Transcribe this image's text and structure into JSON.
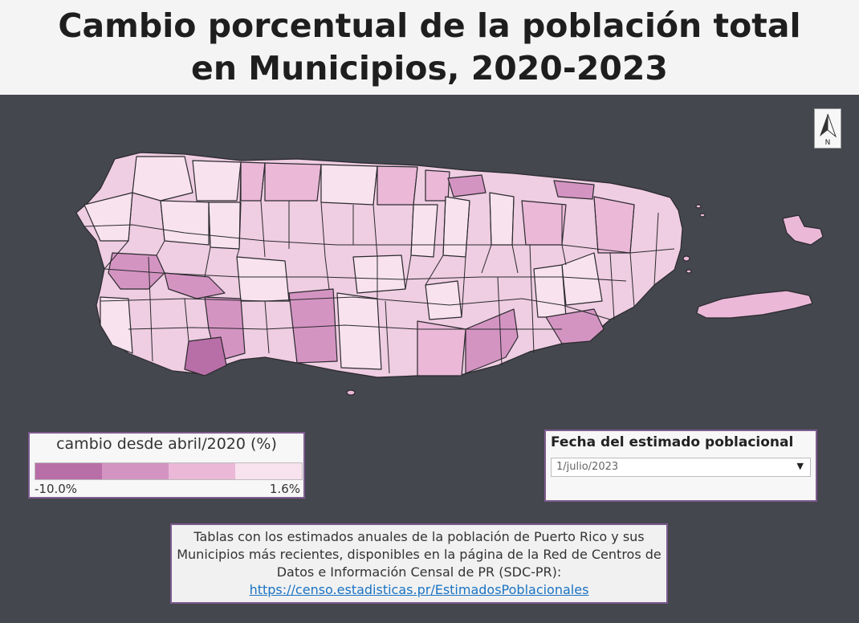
{
  "header": {
    "title_line1": "Cambio porcentual de la población total",
    "title_line2": "en Municipios, 2020-2023"
  },
  "north_arrow": {
    "label": "N"
  },
  "legend": {
    "title": "cambio desde abril/2020 (%)",
    "min_label": "-10.0%",
    "max_label": "1.6%",
    "colors": [
      "#b86ea6",
      "#d494c2",
      "#ebb8d8",
      "#f8e2ee"
    ]
  },
  "date_panel": {
    "label": "Fecha del estimado poblacional",
    "selected": "1/julio/2023"
  },
  "info": {
    "text": "Tablas con los estimados anuales de la población de Puerto Rico y sus Municipios más recientes, disponibles en la página de la Red de Centros de Datos e Información Censal de PR (SDC-PR):",
    "link_text": "https://censo.estadisticas.pr/EstimadosPoblacionales"
  },
  "map": {
    "colors": {
      "background": "#44474e",
      "border": "#2a2a2e"
    }
  }
}
